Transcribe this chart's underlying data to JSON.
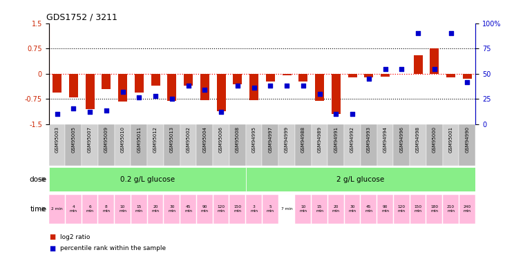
{
  "title": "GDS1752 / 3211",
  "samples": [
    "GSM95003",
    "GSM95005",
    "GSM95007",
    "GSM95009",
    "GSM95010",
    "GSM95011",
    "GSM95012",
    "GSM95013",
    "GSM95002",
    "GSM95004",
    "GSM95006",
    "GSM95008",
    "GSM94995",
    "GSM94997",
    "GSM94999",
    "GSM94988",
    "GSM94989",
    "GSM94991",
    "GSM94992",
    "GSM94993",
    "GSM94994",
    "GSM94996",
    "GSM94998",
    "GSM95000",
    "GSM95001",
    "GSM94990"
  ],
  "log2_ratio": [
    -0.55,
    -0.7,
    -1.05,
    -0.45,
    -0.82,
    -0.55,
    -0.35,
    -0.8,
    -0.35,
    -0.78,
    -1.1,
    -0.3,
    -0.78,
    -0.22,
    -0.05,
    -0.22,
    -0.8,
    -1.2,
    -0.1,
    -0.1,
    -0.08,
    0.0,
    0.55,
    0.75,
    -0.1,
    -0.15
  ],
  "percentile": [
    10,
    16,
    12,
    14,
    32,
    27,
    28,
    25,
    38,
    34,
    12,
    38,
    36,
    38,
    38,
    38,
    30,
    10,
    10,
    45,
    55,
    55,
    90,
    55,
    90,
    42
  ],
  "bar_color": "#cc2200",
  "dot_color": "#0000cc",
  "ylim_left": [
    -1.5,
    1.5
  ],
  "ylim_right": [
    0,
    100
  ],
  "yticks_left": [
    -1.5,
    -0.75,
    0,
    0.75,
    1.5
  ],
  "yticks_right": [
    0,
    25,
    50,
    75,
    100
  ],
  "dose_split": 12,
  "dose1_label": "0.2 g/L glucose",
  "dose2_label": "2 g/L glucose",
  "dose_color": "#88ee88",
  "time_color_white": "#ffffff",
  "time_color_pink": "#ffbbdd",
  "time_labels": [
    "2 min",
    "4\nmin",
    "6\nmin",
    "8\nmin",
    "10\nmin",
    "15\nmin",
    "20\nmin",
    "30\nmin",
    "45\nmin",
    "90\nmin",
    "120\nmin",
    "150\nmin",
    "3\nmin",
    "5\nmin",
    "7 min",
    "10\nmin",
    "15\nmin",
    "20\nmin",
    "30\nmin",
    "45\nmin",
    "90\nmin",
    "120\nmin",
    "150\nmin",
    "180\nmin",
    "210\nmin",
    "240\nmin"
  ],
  "time_pink_indices": [
    0,
    1,
    2,
    3,
    4,
    5,
    6,
    7,
    8,
    9,
    10,
    11,
    12,
    13,
    15,
    16,
    17,
    18,
    19,
    20,
    21,
    22,
    23,
    24,
    25
  ],
  "time_white_indices": [
    14
  ],
  "legend_items": [
    {
      "color": "#cc2200",
      "label": "log2 ratio"
    },
    {
      "color": "#0000cc",
      "label": "percentile rank within the sample"
    }
  ]
}
